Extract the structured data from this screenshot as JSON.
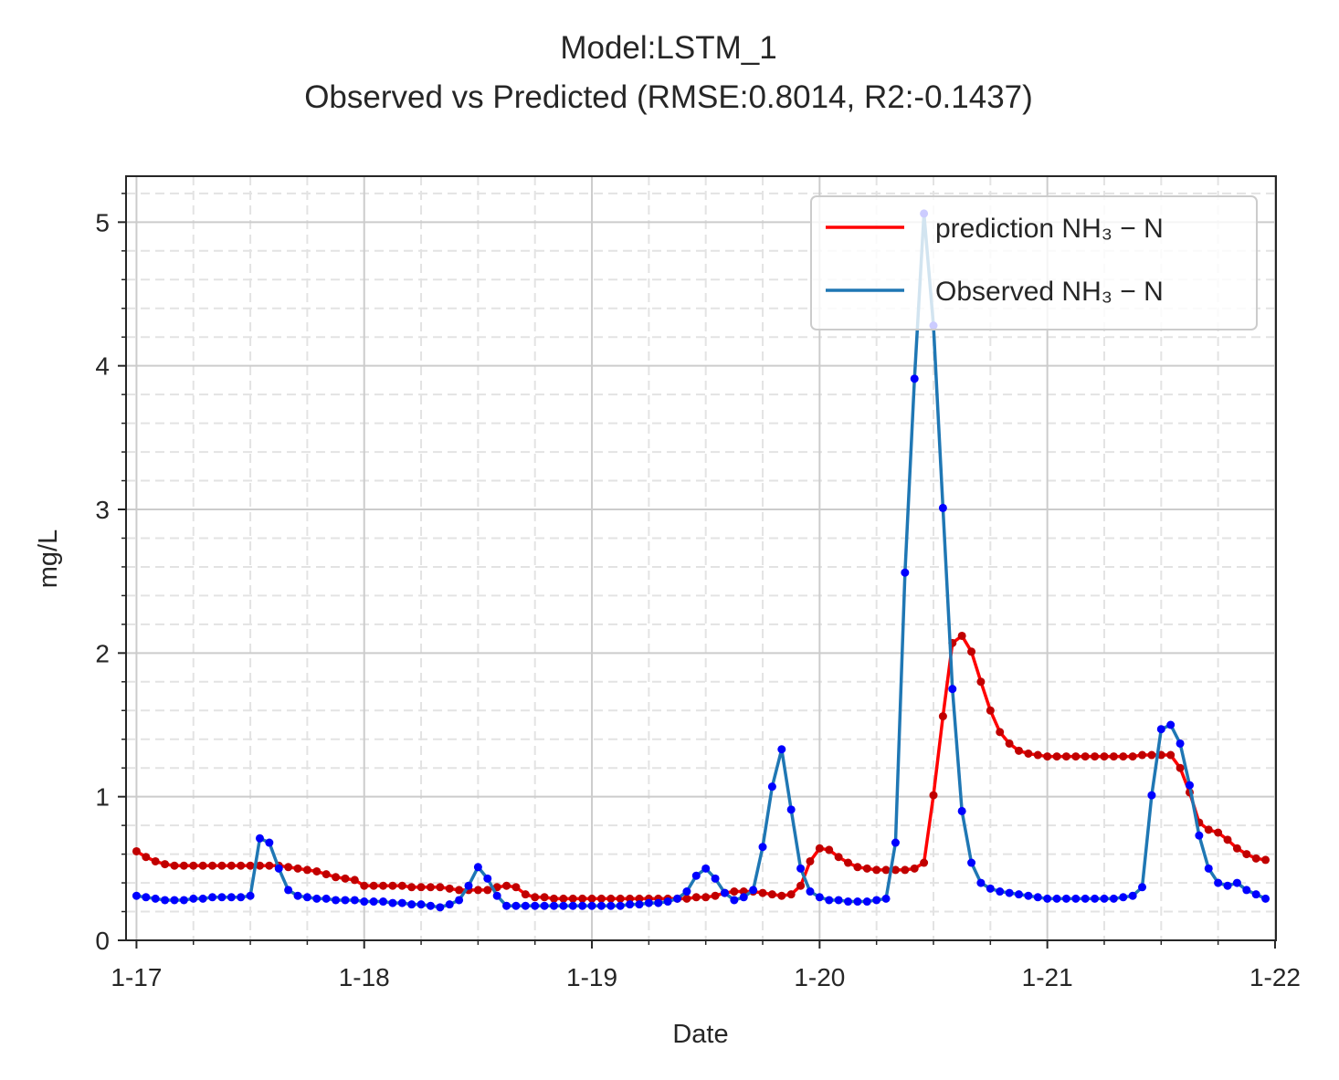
{
  "chart_data": {
    "type": "line",
    "title": "Model:LSTM_1",
    "subtitle": "Observed vs Predicted (RMSE:0.8014, R2:-0.1437)",
    "x_label": "Date",
    "y_label": "mg/L",
    "x": [
      0,
      1,
      2,
      3,
      4,
      5,
      6,
      7,
      8,
      9,
      10,
      11,
      12,
      13,
      14,
      15,
      16,
      17,
      18,
      19,
      20,
      21,
      22,
      23,
      24,
      25,
      26,
      27,
      28,
      29,
      30,
      31,
      32,
      33,
      34,
      35,
      36,
      37,
      38,
      39,
      40,
      41,
      42,
      43,
      44,
      45,
      46,
      47,
      48,
      49,
      50,
      51,
      52,
      53,
      54,
      55,
      56,
      57,
      58,
      59,
      60,
      61,
      62,
      63,
      64,
      65,
      66,
      67,
      68,
      69,
      70,
      71,
      72,
      73,
      74,
      75,
      76,
      77,
      78,
      79,
      80,
      81,
      82,
      83,
      84,
      85,
      86,
      87,
      88,
      89,
      90,
      91,
      92,
      93,
      94,
      95,
      96,
      97,
      98,
      99,
      100,
      101,
      102,
      103,
      104,
      105,
      106,
      107,
      108,
      109,
      110,
      111,
      112,
      113,
      114,
      115,
      116,
      117,
      118,
      119
    ],
    "series": [
      {
        "name": "prediction NH₃ − N",
        "color": "#ff0000",
        "marker_color": "#c00000",
        "values": [
          0.62,
          0.58,
          0.55,
          0.53,
          0.52,
          0.52,
          0.52,
          0.52,
          0.52,
          0.52,
          0.52,
          0.52,
          0.52,
          0.52,
          0.52,
          0.52,
          0.51,
          0.5,
          0.49,
          0.48,
          0.46,
          0.44,
          0.43,
          0.42,
          0.38,
          0.38,
          0.38,
          0.38,
          0.38,
          0.37,
          0.37,
          0.37,
          0.37,
          0.36,
          0.35,
          0.35,
          0.35,
          0.35,
          0.37,
          0.38,
          0.37,
          0.32,
          0.3,
          0.3,
          0.29,
          0.29,
          0.29,
          0.29,
          0.29,
          0.29,
          0.29,
          0.29,
          0.29,
          0.29,
          0.29,
          0.29,
          0.29,
          0.29,
          0.29,
          0.3,
          0.3,
          0.31,
          0.33,
          0.34,
          0.34,
          0.34,
          0.33,
          0.32,
          0.31,
          0.32,
          0.38,
          0.55,
          0.64,
          0.63,
          0.58,
          0.54,
          0.51,
          0.5,
          0.49,
          0.49,
          0.49,
          0.49,
          0.5,
          0.54,
          1.01,
          1.56,
          2.07,
          2.12,
          2.01,
          1.8,
          1.6,
          1.45,
          1.37,
          1.32,
          1.3,
          1.29,
          1.28,
          1.28,
          1.28,
          1.28,
          1.28,
          1.28,
          1.28,
          1.28,
          1.28,
          1.28,
          1.29,
          1.29,
          1.29,
          1.29,
          1.2,
          1.03,
          0.82,
          0.77,
          0.75,
          0.7,
          0.64,
          0.6,
          0.57,
          0.56
        ]
      },
      {
        "name": "Observed NH₃ − N",
        "color": "#1f77b4",
        "marker_color": "#0000ff",
        "values": [
          0.31,
          0.3,
          0.29,
          0.28,
          0.28,
          0.28,
          0.29,
          0.29,
          0.3,
          0.3,
          0.3,
          0.3,
          0.31,
          0.71,
          0.68,
          0.5,
          0.35,
          0.31,
          0.3,
          0.29,
          0.29,
          0.28,
          0.28,
          0.28,
          0.27,
          0.27,
          0.27,
          0.26,
          0.26,
          0.25,
          0.25,
          0.24,
          0.23,
          0.25,
          0.28,
          0.38,
          0.51,
          0.43,
          0.31,
          0.24,
          0.24,
          0.24,
          0.24,
          0.24,
          0.24,
          0.24,
          0.24,
          0.24,
          0.24,
          0.24,
          0.24,
          0.24,
          0.25,
          0.25,
          0.26,
          0.26,
          0.27,
          0.29,
          0.34,
          0.45,
          0.5,
          0.43,
          0.33,
          0.28,
          0.3,
          0.35,
          0.65,
          1.07,
          1.33,
          0.91,
          0.5,
          0.34,
          0.3,
          0.28,
          0.28,
          0.27,
          0.27,
          0.27,
          0.28,
          0.29,
          0.68,
          2.56,
          3.91,
          5.06,
          4.28,
          3.01,
          1.75,
          0.9,
          0.54,
          0.4,
          0.36,
          0.34,
          0.33,
          0.32,
          0.31,
          0.3,
          0.29,
          0.29,
          0.29,
          0.29,
          0.29,
          0.29,
          0.29,
          0.29,
          0.3,
          0.31,
          0.37,
          1.01,
          1.47,
          1.5,
          1.37,
          1.08,
          0.73,
          0.5,
          0.4,
          0.38,
          0.4,
          0.35,
          0.32,
          0.29
        ]
      }
    ],
    "xlim": [
      -1.1,
      120.1
    ],
    "xticks": [
      {
        "value": 0,
        "label": "1-17"
      },
      {
        "value": 24,
        "label": "1-18"
      },
      {
        "value": 48,
        "label": "1-19"
      },
      {
        "value": 72,
        "label": "1-20"
      },
      {
        "value": 96,
        "label": "1-21"
      },
      {
        "value": 120,
        "label": "1-22"
      }
    ],
    "xminorticks": [
      6,
      12,
      18,
      30,
      36,
      42,
      54,
      60,
      66,
      78,
      84,
      90,
      102,
      108,
      114
    ],
    "ylim": [
      0,
      5.32
    ],
    "yticks": [
      0,
      1,
      2,
      3,
      4,
      5
    ],
    "yminorticks": [
      0.2,
      0.4,
      0.6,
      0.8,
      1.2,
      1.4,
      1.6,
      1.8,
      2.2,
      2.4,
      2.6,
      2.8,
      3.2,
      3.4,
      3.6,
      3.8,
      4.2,
      4.4,
      4.6,
      4.8,
      5.2
    ],
    "grid": true,
    "minor_grid": true,
    "legend": "upper right"
  }
}
